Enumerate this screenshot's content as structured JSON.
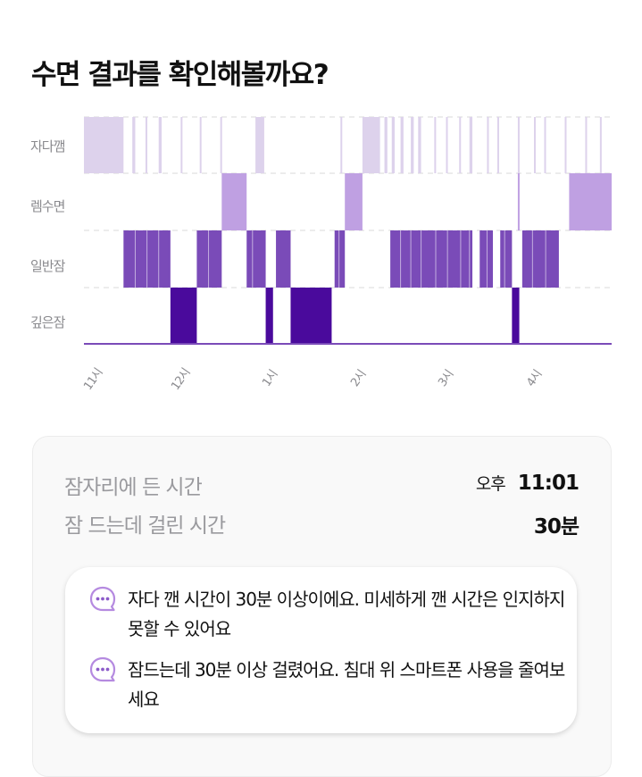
{
  "title": "수면 결과를 확인해볼까요?",
  "chart": {
    "stages": [
      "자다깸",
      "렘수면",
      "일반잠",
      "깊은잠"
    ],
    "time_labels": [
      "11시",
      "12시",
      "1시",
      "2시",
      "3시",
      "4시"
    ],
    "colors": {
      "awake": "#ddd2ec",
      "rem": "#bfa0e2",
      "light": "#7a4bb8",
      "deep": "#4a0a9c",
      "grid": "#e0e0e0",
      "baseline": "#7a4bb8"
    }
  },
  "chart_data": {
    "type": "bar",
    "title": "",
    "categories": [
      "자다깸",
      "렘수면",
      "일반잠",
      "깊은잠"
    ],
    "x_ticks": [
      "11시",
      "12시",
      "1시",
      "2시",
      "3시",
      "4시"
    ],
    "segments": [
      {
        "stage": "자다깸",
        "start": "22:58",
        "end": "23:25"
      },
      {
        "stage": "자다깸",
        "start": "23:31",
        "end": "23:33"
      },
      {
        "stage": "자다깸",
        "start": "23:40",
        "end": "23:41"
      },
      {
        "stage": "자다깸",
        "start": "23:49",
        "end": "23:51"
      },
      {
        "stage": "자다깸",
        "start": "00:04",
        "end": "00:05"
      },
      {
        "stage": "자다깸",
        "start": "00:17",
        "end": "00:18"
      },
      {
        "stage": "자다깸",
        "start": "00:31",
        "end": "00:32"
      },
      {
        "stage": "자다깸",
        "start": "00:55",
        "end": "01:01"
      },
      {
        "stage": "자다깸",
        "start": "01:53",
        "end": "01:54"
      },
      {
        "stage": "자다깸",
        "start": "02:08",
        "end": "02:20"
      },
      {
        "stage": "자다깸",
        "start": "02:23",
        "end": "02:25"
      },
      {
        "stage": "자다깸",
        "start": "02:28",
        "end": "02:30"
      },
      {
        "stage": "자다깸",
        "start": "02:34",
        "end": "02:36"
      },
      {
        "stage": "자다깸",
        "start": "02:41",
        "end": "02:43"
      },
      {
        "stage": "자다깸",
        "start": "02:46",
        "end": "02:48"
      },
      {
        "stage": "자다깸",
        "start": "02:57",
        "end": "02:58"
      },
      {
        "stage": "자다깸",
        "start": "03:05",
        "end": "03:06"
      },
      {
        "stage": "자다깸",
        "start": "03:14",
        "end": "03:15"
      },
      {
        "stage": "자다깸",
        "start": "03:21",
        "end": "03:23"
      },
      {
        "stage": "자다깸",
        "start": "03:33",
        "end": "03:34"
      },
      {
        "stage": "자다깸",
        "start": "03:40",
        "end": "03:41"
      },
      {
        "stage": "자다깸",
        "start": "03:54",
        "end": "03:55"
      },
      {
        "stage": "자다깸",
        "start": "04:05",
        "end": "04:06"
      },
      {
        "stage": "자다깸",
        "start": "04:12",
        "end": "04:13"
      },
      {
        "stage": "자다깸",
        "start": "04:26",
        "end": "04:27"
      },
      {
        "stage": "자다깸",
        "start": "04:40",
        "end": "04:41"
      },
      {
        "stage": "자다깸",
        "start": "04:50",
        "end": "04:51"
      },
      {
        "stage": "렘수면",
        "start": "00:32",
        "end": "00:49"
      },
      {
        "stage": "렘수면",
        "start": "01:56",
        "end": "02:08"
      },
      {
        "stage": "렘수면",
        "start": "03:54",
        "end": "03:55"
      },
      {
        "stage": "렘수면",
        "start": "04:29",
        "end": "04:58"
      },
      {
        "stage": "일반잠",
        "start": "23:25",
        "end": "23:57"
      },
      {
        "stage": "일반잠",
        "start": "00:15",
        "end": "00:32"
      },
      {
        "stage": "일반잠",
        "start": "00:49",
        "end": "01:02"
      },
      {
        "stage": "일반잠",
        "start": "01:09",
        "end": "01:19"
      },
      {
        "stage": "일반잠",
        "start": "01:49",
        "end": "01:56"
      },
      {
        "stage": "일반잠",
        "start": "02:27",
        "end": "03:23"
      },
      {
        "stage": "일반잠",
        "start": "03:28",
        "end": "03:37"
      },
      {
        "stage": "일반잠",
        "start": "03:42",
        "end": "03:50"
      },
      {
        "stage": "일반잠",
        "start": "03:57",
        "end": "04:22"
      },
      {
        "stage": "깊은잠",
        "start": "23:57",
        "end": "00:15"
      },
      {
        "stage": "깊은잠",
        "start": "01:02",
        "end": "01:07"
      },
      {
        "stage": "깊은잠",
        "start": "01:19",
        "end": "01:47"
      },
      {
        "stage": "깊은잠",
        "start": "03:50",
        "end": "03:55"
      }
    ]
  },
  "summary": {
    "bed_label": "잠자리에 든 시간",
    "bed_ampm": "오후",
    "bed_time": "11:01",
    "latency_label": "잠 드는데 걸린 시간",
    "latency_value": "30분",
    "messages": [
      {
        "icon": "chat-bubble-icon",
        "text": "자다 깬 시간이 30분 이상이에요. 미세하게 깬 시간은 인지하지 못할 수 있어요"
      },
      {
        "icon": "chat-bubble-icon",
        "text": "잠드는데 30분 이상 걸렸어요. 침대 위 스마트폰 사용을 줄여보세요"
      }
    ]
  }
}
